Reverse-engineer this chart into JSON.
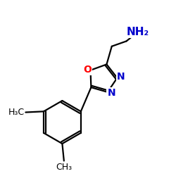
{
  "background_color": "#ffffff",
  "figsize": [
    2.5,
    2.5
  ],
  "dpi": 100,
  "bond_color": "#000000",
  "bond_lw": 1.6,
  "O_color": "#ff0000",
  "N_color": "#0000cc",
  "label_NH2": "NH₂",
  "label_H3C": "H₃C",
  "label_CH3": "CH₃",
  "label_O": "O",
  "label_N": "N",
  "font_size_atom": 9,
  "font_size_nh2": 11
}
